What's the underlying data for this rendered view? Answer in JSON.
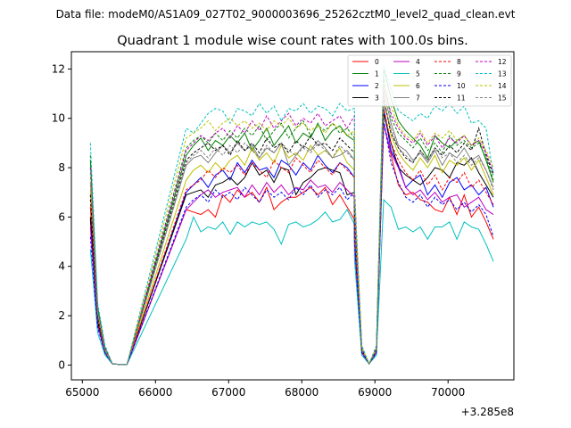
{
  "suptitle": "Data file: modeM0/AS1A09_027T02_9000003696_25262cztM0_level2_quad_clean.evt",
  "chart_data": {
    "type": "line",
    "title": "Quadrant 1 module wise count rates with 100.0s bins.",
    "xlabel": "",
    "ylabel": "",
    "x_offset_text": "+3.285e8",
    "xlim": [
      64850,
      70900
    ],
    "ylim": [
      -0.6,
      12.7
    ],
    "xticks": [
      65000,
      66000,
      67000,
      68000,
      69000,
      70000
    ],
    "yticks": [
      0,
      2,
      4,
      6,
      8,
      10,
      12
    ],
    "grid": false,
    "legend_position": "top-right",
    "legend_columns": 4,
    "colors": {
      "0": "#ff0000",
      "1": "#008000",
      "2": "#0000ff",
      "3": "#000000",
      "4": "#bf00bf",
      "5": "#00bfbf",
      "6": "#bfbf00",
      "7": "#808080",
      "8": "#ff0000",
      "9": "#008000",
      "10": "#0000ff",
      "11": "#000000",
      "12": "#bf00bf",
      "13": "#00bfbf",
      "14": "#bfbf00",
      "15": "#808080"
    },
    "segments": [
      {
        "start": 65110,
        "step": 100,
        "n": 6
      },
      {
        "start": 66420,
        "step": 100,
        "n": 24
      },
      {
        "start": 68720,
        "step": 100,
        "n": 20
      }
    ],
    "series": [
      {
        "name": "0",
        "style": "solid",
        "head": [
          6.4,
          1.8,
          0.5,
          0.05,
          0.02,
          0.02
        ],
        "body": [
          6.3,
          6.2,
          6.1,
          6.3,
          6.0,
          6.9,
          6.6,
          7.1,
          6.8,
          7.0,
          6.6,
          7.2,
          6.3,
          6.6,
          6.8,
          6.8,
          7.0,
          7.2,
          6.9,
          7.2,
          6.5,
          6.9,
          6.4,
          5.9
        ],
        "tail": [
          4.9,
          0.5,
          0.05,
          0.5,
          9.8,
          8.5,
          7.3,
          6.9,
          7.0,
          6.7,
          6.6,
          6.3,
          6.2,
          6.8,
          6.1,
          6.9,
          6.0,
          6.4,
          5.8,
          5.1
        ]
      },
      {
        "name": "1",
        "style": "solid",
        "head": [
          8.3,
          2.3,
          0.7,
          0.05,
          0.02,
          0.02
        ],
        "body": [
          8.5,
          8.9,
          9.2,
          8.7,
          9.1,
          8.9,
          9.3,
          9.0,
          9.4,
          8.7,
          9.1,
          9.6,
          8.9,
          9.3,
          9.7,
          9.0,
          9.4,
          9.2,
          9.8,
          9.1,
          9.5,
          9.7,
          9.3,
          9.1
        ],
        "tail": [
          6.6,
          0.7,
          0.05,
          0.7,
          12.0,
          10.8,
          9.9,
          9.5,
          9.2,
          8.9,
          8.4,
          9.3,
          9.0,
          8.8,
          9.1,
          9.3,
          8.9,
          9.1,
          8.3,
          7.4
        ]
      },
      {
        "name": "2",
        "style": "solid",
        "head": [
          5.9,
          1.7,
          0.5,
          0.05,
          0.02,
          0.02
        ],
        "body": [
          7.0,
          7.3,
          7.6,
          7.2,
          7.7,
          7.9,
          7.5,
          8.2,
          7.8,
          8.3,
          7.9,
          8.0,
          7.6,
          8.3,
          8.1,
          7.7,
          8.2,
          7.9,
          8.5,
          8.1,
          7.8,
          8.2,
          8.0,
          7.6
        ],
        "tail": [
          5.5,
          0.6,
          0.05,
          0.6,
          10.4,
          8.7,
          8.1,
          7.2,
          7.5,
          7.7,
          6.9,
          7.3,
          6.8,
          7.4,
          7.6,
          7.1,
          7.3,
          6.9,
          7.2,
          6.4
        ]
      },
      {
        "name": "3",
        "style": "solid",
        "head": [
          6.0,
          1.7,
          0.5,
          0.05,
          0.02,
          0.02
        ],
        "body": [
          6.9,
          7.0,
          7.1,
          6.8,
          7.3,
          7.4,
          7.6,
          7.3,
          7.6,
          8.2,
          7.7,
          7.9,
          7.4,
          8.0,
          7.9,
          6.9,
          7.4,
          7.6,
          7.9,
          8.0,
          7.9,
          7.8,
          6.9,
          7.0
        ],
        "tail": [
          5.2,
          0.6,
          0.05,
          0.6,
          10.2,
          9.0,
          8.0,
          7.7,
          7.5,
          7.3,
          7.6,
          8.0,
          7.9,
          7.6,
          8.2,
          8.1,
          8.4,
          7.8,
          7.3,
          6.8
        ]
      },
      {
        "name": "4",
        "style": "solid",
        "head": [
          5.6,
          1.6,
          0.5,
          0.05,
          0.02,
          0.02
        ],
        "body": [
          6.3,
          6.6,
          6.9,
          7.1,
          6.8,
          7.0,
          7.1,
          7.2,
          6.8,
          7.3,
          6.9,
          7.4,
          7.0,
          7.3,
          6.9,
          7.2,
          7.1,
          7.5,
          7.2,
          7.3,
          7.0,
          7.4,
          7.1,
          6.8
        ],
        "tail": [
          5.3,
          0.5,
          0.05,
          0.5,
          9.8,
          8.6,
          8.0,
          7.2,
          6.9,
          7.1,
          6.7,
          7.0,
          6.6,
          6.8,
          6.9,
          6.4,
          6.6,
          6.8,
          6.3,
          6.1
        ]
      },
      {
        "name": "5",
        "style": "solid",
        "head": [
          4.7,
          1.3,
          0.4,
          0.05,
          0.02,
          0.02
        ],
        "body": [
          5.1,
          6.0,
          5.4,
          5.6,
          5.5,
          5.8,
          5.3,
          5.8,
          5.6,
          5.8,
          5.7,
          5.8,
          5.5,
          4.9,
          5.7,
          5.8,
          5.6,
          5.7,
          5.9,
          6.2,
          5.8,
          5.9,
          6.3,
          5.7
        ],
        "tail": [
          4.3,
          0.4,
          0.05,
          0.4,
          6.7,
          6.4,
          5.5,
          5.6,
          5.4,
          5.6,
          5.1,
          5.6,
          5.6,
          5.8,
          5.1,
          5.8,
          5.6,
          5.5,
          4.9,
          4.2
        ]
      },
      {
        "name": "6",
        "style": "solid",
        "head": [
          7.1,
          2.0,
          0.6,
          0.05,
          0.02,
          0.02
        ],
        "body": [
          7.5,
          7.9,
          8.1,
          7.8,
          8.2,
          7.9,
          8.3,
          8.5,
          8.1,
          8.8,
          8.3,
          8.6,
          8.2,
          8.9,
          8.4,
          8.6,
          8.3,
          8.9,
          8.5,
          8.7,
          8.4,
          8.8,
          8.2,
          7.9
        ],
        "tail": [
          5.9,
          0.6,
          0.05,
          0.6,
          10.9,
          9.3,
          8.6,
          8.2,
          7.9,
          8.4,
          8.0,
          8.5,
          7.8,
          8.3,
          8.1,
          8.4,
          7.9,
          8.3,
          7.6,
          6.9
        ]
      },
      {
        "name": "7",
        "style": "solid",
        "head": [
          7.4,
          2.1,
          0.6,
          0.05,
          0.02,
          0.02
        ],
        "body": [
          8.1,
          8.4,
          8.5,
          8.2,
          8.6,
          8.9,
          8.6,
          9.0,
          8.7,
          8.9,
          8.4,
          8.8,
          8.6,
          9.0,
          8.1,
          8.5,
          8.9,
          8.7,
          9.1,
          8.8,
          8.4,
          8.5,
          8.7,
          8.3
        ],
        "tail": [
          6.1,
          0.6,
          0.05,
          0.6,
          11.1,
          9.8,
          8.9,
          8.7,
          8.3,
          8.6,
          8.2,
          8.7,
          8.1,
          8.6,
          8.4,
          8.8,
          8.3,
          8.5,
          7.9,
          7.2
        ]
      },
      {
        "name": "8",
        "style": "dashed",
        "head": [
          6.7,
          1.9,
          0.6,
          0.05,
          0.02,
          0.02
        ],
        "body": [
          7.1,
          7.3,
          7.5,
          7.9,
          7.6,
          8.0,
          7.8,
          8.1,
          7.7,
          8.2,
          7.9,
          7.6,
          8.3,
          8.0,
          7.8,
          8.4,
          8.1,
          7.8,
          8.3,
          8.0,
          7.7,
          8.2,
          7.9,
          7.6
        ],
        "tail": [
          5.6,
          0.6,
          0.05,
          0.6,
          10.4,
          9.0,
          8.3,
          7.8,
          7.5,
          7.9,
          7.3,
          7.7,
          7.1,
          7.6,
          7.4,
          7.8,
          7.2,
          7.5,
          7.0,
          6.5
        ]
      },
      {
        "name": "9",
        "style": "dashed",
        "head": [
          8.5,
          2.4,
          0.7,
          0.05,
          0.02,
          0.02
        ],
        "body": [
          8.8,
          9.1,
          9.3,
          9.0,
          9.4,
          9.1,
          9.5,
          9.2,
          9.6,
          9.3,
          9.7,
          9.1,
          9.5,
          9.8,
          9.2,
          9.6,
          9.9,
          9.3,
          9.7,
          9.5,
          9.8,
          9.4,
          9.6,
          9.2
        ],
        "tail": [
          6.8,
          0.7,
          0.05,
          0.7,
          11.6,
          10.0,
          9.4,
          9.1,
          8.8,
          9.2,
          8.7,
          9.0,
          8.6,
          9.3,
          8.9,
          9.1,
          8.8,
          9.0,
          8.4,
          7.5
        ]
      },
      {
        "name": "10",
        "style": "dashed",
        "head": [
          5.2,
          1.5,
          0.5,
          0.05,
          0.02,
          0.02
        ],
        "body": [
          6.4,
          6.7,
          6.9,
          6.6,
          7.1,
          6.8,
          7.0,
          6.7,
          7.2,
          6.9,
          6.6,
          7.1,
          6.8,
          7.0,
          6.7,
          7.2,
          6.9,
          7.3,
          6.8,
          7.1,
          6.9,
          7.2,
          6.7,
          7.0
        ],
        "tail": [
          5.0,
          0.5,
          0.05,
          0.5,
          9.9,
          8.2,
          7.4,
          6.8,
          6.6,
          6.9,
          6.4,
          6.8,
          6.5,
          6.7,
          6.3,
          6.6,
          6.2,
          6.5,
          6.1,
          5.2
        ]
      },
      {
        "name": "11",
        "style": "dashed",
        "head": [
          6.9,
          1.9,
          0.6,
          0.05,
          0.02,
          0.02
        ],
        "body": [
          8.3,
          8.6,
          8.8,
          9.0,
          8.7,
          8.9,
          8.5,
          9.1,
          8.7,
          9.0,
          8.6,
          9.2,
          8.8,
          9.0,
          8.6,
          9.1,
          8.8,
          9.3,
          8.9,
          9.0,
          8.7,
          9.2,
          8.9,
          8.6
        ],
        "tail": [
          6.4,
          0.6,
          0.05,
          0.6,
          10.8,
          9.4,
          8.8,
          8.4,
          8.2,
          8.7,
          8.3,
          8.8,
          8.5,
          8.9,
          8.6,
          9.0,
          8.7,
          9.6,
          8.5,
          7.7
        ]
      },
      {
        "name": "12",
        "style": "dashed",
        "head": [
          8.0,
          2.2,
          0.7,
          0.05,
          0.02,
          0.02
        ],
        "body": [
          8.7,
          9.0,
          9.3,
          9.1,
          9.4,
          9.6,
          9.2,
          9.7,
          9.4,
          9.9,
          9.5,
          10.1,
          9.6,
          9.9,
          10.2,
          9.7,
          10.0,
          9.8,
          10.2,
          9.7,
          9.9,
          10.1,
          9.6,
          10.1
        ],
        "tail": [
          7.2,
          0.7,
          0.05,
          0.7,
          11.3,
          10.2,
          9.6,
          9.2,
          9.0,
          9.4,
          8.9,
          9.3,
          8.8,
          9.2,
          9.0,
          9.3,
          8.9,
          9.1,
          8.6,
          7.8
        ]
      },
      {
        "name": "13",
        "style": "dashed",
        "head": [
          9.0,
          2.5,
          0.8,
          0.05,
          0.02,
          0.02
        ],
        "body": [
          9.6,
          9.4,
          9.8,
          10.2,
          10.4,
          10.3,
          9.8,
          10.4,
          10.3,
          10.1,
          10.6,
          10.2,
          10.5,
          9.9,
          10.4,
          10.3,
          10.6,
          10.2,
          10.5,
          10.4,
          10.1,
          10.6,
          10.3,
          10.4
        ],
        "tail": [
          7.0,
          0.8,
          0.05,
          0.8,
          12.1,
          11.2,
          10.3,
          10.1,
          9.9,
          10.2,
          10.0,
          10.5,
          10.3,
          10.6,
          10.2,
          10.5,
          9.8,
          9.9,
          9.6,
          7.7
        ]
      },
      {
        "name": "14",
        "style": "dashed",
        "head": [
          7.6,
          2.1,
          0.6,
          0.05,
          0.02,
          0.02
        ],
        "body": [
          9.2,
          9.4,
          9.6,
          9.9,
          9.5,
          9.8,
          10.0,
          9.7,
          9.9,
          9.6,
          9.8,
          9.5,
          9.9,
          9.7,
          10.0,
          9.6,
          9.8,
          9.5,
          9.7,
          9.4,
          9.8,
          9.6,
          9.3,
          9.5
        ],
        "tail": [
          6.9,
          0.7,
          0.05,
          0.7,
          11.4,
          10.5,
          9.7,
          9.3,
          9.1,
          9.5,
          9.0,
          9.4,
          9.2,
          9.5,
          9.1,
          9.3,
          8.9,
          9.2,
          8.7,
          8.0
        ]
      },
      {
        "name": "15",
        "style": "dashed",
        "head": [
          7.8,
          2.2,
          0.7,
          0.05,
          0.02,
          0.02
        ],
        "body": [
          8.2,
          8.5,
          8.7,
          8.4,
          8.8,
          8.5,
          8.9,
          8.6,
          9.0,
          8.7,
          8.4,
          8.9,
          8.6,
          9.0,
          8.7,
          8.5,
          8.8,
          8.6,
          9.0,
          8.7,
          8.4,
          8.9,
          8.6,
          8.3
        ],
        "tail": [
          6.2,
          0.6,
          0.05,
          0.6,
          10.6,
          9.6,
          8.8,
          8.5,
          8.2,
          8.7,
          8.3,
          8.8,
          8.4,
          8.6,
          8.2,
          8.5,
          8.1,
          8.4,
          7.9,
          7.1
        ]
      }
    ]
  }
}
